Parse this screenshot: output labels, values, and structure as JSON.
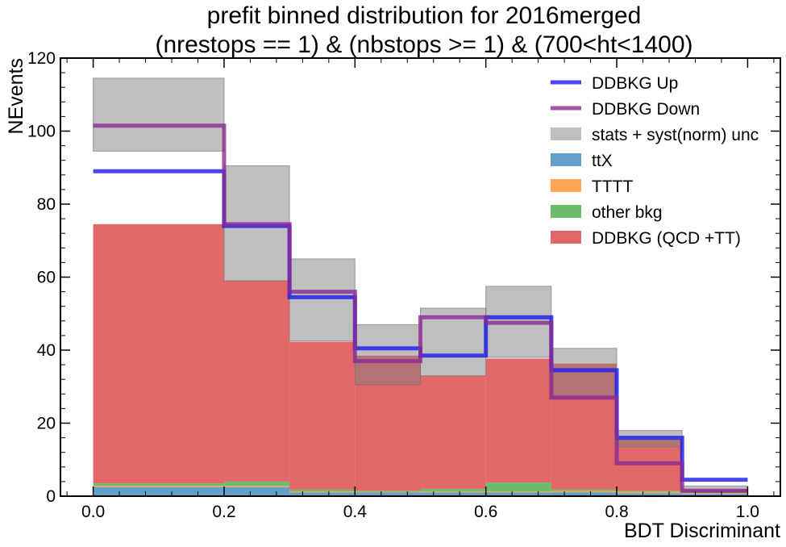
{
  "chart_data": {
    "type": "bar",
    "title": "prefit binned distribution for 2016merged",
    "subtitle": "(nrestops == 1) & (nbstops >= 1) & (700<ht<1400)",
    "xlabel": "BDT Discriminant",
    "ylabel": "NEvents",
    "xlim": [
      -0.05,
      1.05
    ],
    "ylim": [
      0,
      120
    ],
    "xticks": [
      "0.0",
      "0.2",
      "0.4",
      "0.6",
      "0.8",
      "1.0"
    ],
    "yticks": [
      "0",
      "20",
      "40",
      "60",
      "80",
      "100",
      "120"
    ],
    "bin_edges": [
      0.0,
      0.2,
      0.3,
      0.4,
      0.5,
      0.6,
      0.7,
      0.8,
      0.9,
      1.0
    ],
    "stack": [
      {
        "name": "ttX",
        "color": "#1f77b4",
        "values": [
          2.5,
          2.5,
          1.0,
          1.0,
          1.0,
          1.0,
          1.0,
          0.8,
          0.6
        ]
      },
      {
        "name": "TTTT",
        "color": "#ff7f0e",
        "values": [
          0.3,
          0.3,
          0.3,
          0.2,
          0.3,
          0.3,
          0.4,
          0.4,
          0.2
        ]
      },
      {
        "name": "other bkg",
        "color": "#2ca02c",
        "values": [
          0.7,
          1.2,
          0.5,
          0.3,
          0.7,
          2.4,
          0.4,
          0.3,
          0.2
        ]
      },
      {
        "name": "DDBKG (QCD +TT)",
        "color": "#d62728",
        "values": [
          71,
          55,
          40.5,
          37,
          31,
          34,
          34.5,
          14,
          0.8
        ]
      }
    ],
    "uncertainty_band": {
      "name": "stats + syst(norm) unc",
      "color": "#808080",
      "low": [
        94.5,
        59,
        42.5,
        30.5,
        33,
        38,
        27,
        13.5,
        1.2
      ],
      "high": [
        114.5,
        90.5,
        65,
        47,
        51.5,
        57.5,
        40.5,
        18,
        2.8
      ]
    },
    "lines": [
      {
        "name": "DDBKG Up",
        "color": "#1a1aee",
        "values": [
          89,
          74,
          54.5,
          40.5,
          38.5,
          49,
          34.5,
          16,
          4.5
        ]
      },
      {
        "name": "DDBKG Down",
        "color": "#8b2a95",
        "values": [
          101.5,
          74.5,
          56,
          37,
          49,
          47.5,
          27,
          9,
          1.5
        ]
      }
    ],
    "legend": {
      "placement": "top-right",
      "entries": [
        {
          "label": "DDBKG Up",
          "kind": "line",
          "color": "#1a1aee"
        },
        {
          "label": "DDBKG Down",
          "kind": "line",
          "color": "#8b2a95"
        },
        {
          "label": "stats + syst(norm) unc",
          "kind": "patch",
          "color": "#808080"
        },
        {
          "label": "ttX",
          "kind": "patch",
          "color": "#1f77b4"
        },
        {
          "label": "TTTT",
          "kind": "patch",
          "color": "#ff7f0e"
        },
        {
          "label": "other bkg",
          "kind": "patch",
          "color": "#2ca02c"
        },
        {
          "label": "DDBKG (QCD +TT)",
          "kind": "patch",
          "color": "#d62728"
        }
      ]
    },
    "grid": false
  }
}
